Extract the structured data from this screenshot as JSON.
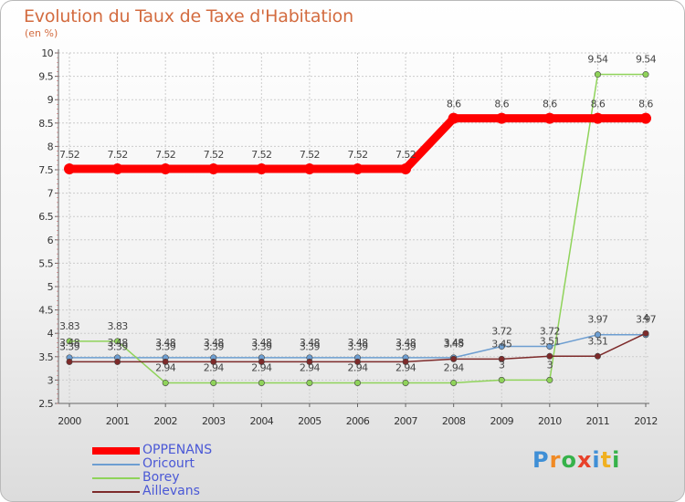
{
  "chart_data": {
    "type": "line",
    "title": "Evolution du Taux de Taxe d'Habitation",
    "subtitle": "(en %)",
    "xlabel": "",
    "ylabel": "(en %)",
    "ylim": [
      2.5,
      10
    ],
    "yticks": [
      "2.5",
      "3",
      "3.5",
      "4",
      "4.5",
      "5",
      "5.5",
      "6",
      "6.5",
      "7",
      "7.5",
      "8",
      "8.5",
      "9",
      "9.5",
      "10"
    ],
    "categories": [
      "2000",
      "2001",
      "2002",
      "2003",
      "2004",
      "2005",
      "2006",
      "2007",
      "2008",
      "2009",
      "2010",
      "2011",
      "2012"
    ],
    "series": [
      {
        "name": "OPPENANS",
        "color": "#ff0000",
        "values": [
          7.52,
          7.52,
          7.52,
          7.52,
          7.52,
          7.52,
          7.52,
          7.52,
          8.6,
          8.6,
          8.6,
          8.6,
          8.6
        ],
        "labels": [
          "7.52",
          "7.52",
          "7.52",
          "7.52",
          "7.52",
          "7.52",
          "7.52",
          "7.52",
          "8.6",
          "8.6",
          "8.6",
          "8.6",
          "8.6"
        ]
      },
      {
        "name": "Oricourt",
        "color": "#6d9ed1",
        "values": [
          3.48,
          3.48,
          3.48,
          3.48,
          3.48,
          3.48,
          3.48,
          3.48,
          3.48,
          3.72,
          3.72,
          3.97,
          3.97
        ],
        "labels": [
          "3.48",
          "3.48",
          "3.48",
          "3.48",
          "3.48",
          "3.48",
          "3.48",
          "3.48",
          "3.48",
          "3.72",
          "3.72",
          "3.97",
          "3.97"
        ]
      },
      {
        "name": "Borey",
        "color": "#8fd35a",
        "values": [
          3.83,
          3.83,
          2.94,
          2.94,
          2.94,
          2.94,
          2.94,
          2.94,
          2.94,
          3,
          3,
          9.54,
          9.54
        ],
        "labels": [
          "3.83",
          "3.83",
          "2.94",
          "2.94",
          "2.94",
          "2.94",
          "2.94",
          "2.94",
          "2.94",
          "3",
          "3",
          "9.54",
          "9.54"
        ]
      },
      {
        "name": "Aillevans",
        "color": "#7d2a2a",
        "values": [
          3.39,
          3.39,
          3.39,
          3.39,
          3.39,
          3.39,
          3.39,
          3.39,
          3.45,
          3.45,
          3.51,
          3.51,
          4
        ],
        "labels": [
          "3.39",
          "3.39",
          "3.39",
          "3.39",
          "3.39",
          "3.39",
          "3.39",
          "3.39",
          "3.45",
          "3.45",
          "3.51",
          "3.51",
          "4"
        ]
      }
    ]
  },
  "legend": {
    "items": [
      {
        "label": "OPPENANS",
        "color": "#ff0000"
      },
      {
        "label": "Oricourt",
        "color": "#6d9ed1"
      },
      {
        "label": "Borey",
        "color": "#8fd35a"
      },
      {
        "label": "Aillevans",
        "color": "#7d2a2a"
      }
    ]
  },
  "logo": {
    "letters": [
      "P",
      "r",
      "o",
      "x",
      "i",
      "t",
      "i"
    ],
    "colors": [
      "#3f8fd6",
      "#f08a24",
      "#36b24a",
      "#e8412a",
      "#3f8fd6",
      "#f0b020",
      "#36b24a"
    ]
  }
}
